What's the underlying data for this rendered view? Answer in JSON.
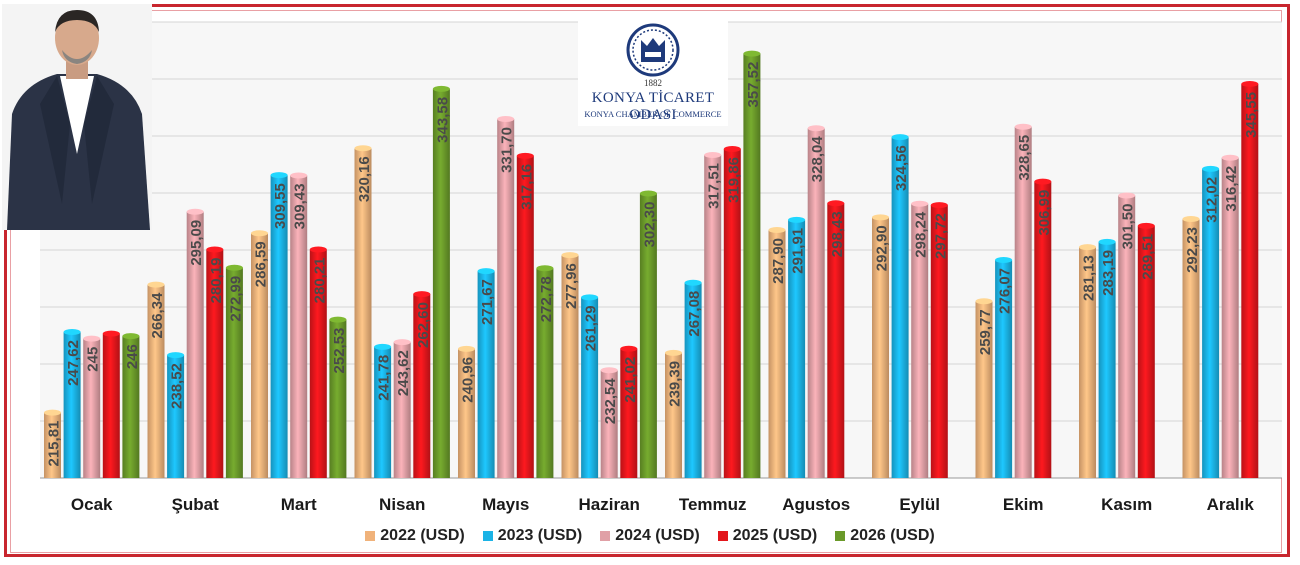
{
  "logo": {
    "year": "1882",
    "name": "KONYA TİCARET ODASI",
    "subtitle": "KONYA CHAMBER OF COMMERCE"
  },
  "colors": {
    "2022 (USD)": "#f0b27a",
    "2023 (USD)": "#1bb3e6",
    "2024 (USD)": "#e0a0a6",
    "2025 (USD)": "#e3161c",
    "2026 (USD)": "#6a9a2a",
    "frame": "#c8262e"
  },
  "chart_data": {
    "type": "bar",
    "title": "",
    "xlabel": "",
    "ylabel": "",
    "ylim": [
      190,
      370
    ],
    "grid": true,
    "legend_position": "bottom",
    "categories": [
      "Ocak",
      "Şubat",
      "Mart",
      "Nisan",
      "Mayıs",
      "Haziran",
      "Temmuz",
      "Agustos",
      "Eylül",
      "Ekim",
      "Kasım",
      "Aralık"
    ],
    "series": [
      {
        "name": "2022 (USD)",
        "values": [
          215.81,
          266.34,
          286.59,
          320.16,
          240.96,
          277.96,
          239.39,
          287.9,
          292.9,
          259.77,
          281.13,
          292.23
        ],
        "labels": [
          "215,81",
          "266,34",
          "286,59",
          "320,16",
          "240,96",
          "277,96",
          "239,39",
          "287,90",
          "292,90",
          "259,77",
          "281,13",
          "292,23"
        ]
      },
      {
        "name": "2023 (USD)",
        "values": [
          247.62,
          238.52,
          309.55,
          241.78,
          271.67,
          261.29,
          267.08,
          291.91,
          324.56,
          276.07,
          283.19,
          312.02
        ],
        "labels": [
          "247,62",
          "238,52",
          "309,55",
          "241,78",
          "271,67",
          "261,29",
          "267,08",
          "291,91",
          "324,56",
          "276,07",
          "283,19",
          "312,02"
        ]
      },
      {
        "name": "2024 (USD)",
        "values": [
          245,
          295.09,
          309.43,
          243.62,
          331.7,
          232.54,
          317.51,
          328.04,
          298.24,
          328.65,
          301.5,
          316.42
        ],
        "labels": [
          "245",
          "295,09",
          "309,43",
          "243,62",
          "331,70",
          "232,54",
          "317,51",
          "328,04",
          "298,24",
          "328,65",
          "301,50",
          "316,42"
        ]
      },
      {
        "name": "2025 (USD)",
        "values": [
          247,
          280.19,
          280.21,
          262.6,
          317.16,
          241.02,
          319.86,
          298.43,
          297.72,
          306.99,
          289.51,
          345.55
        ],
        "labels": [
          "",
          "280,19",
          "280,21",
          "262,60",
          "317,16",
          "241,02",
          "319,86",
          "298,43",
          "297,72",
          "306,99",
          "289,51",
          "345,55"
        ]
      },
      {
        "name": "2026 (USD)",
        "values": [
          246,
          272.99,
          252.53,
          343.58,
          272.78,
          302.3,
          357.52,
          null,
          null,
          null,
          null,
          null
        ],
        "labels": [
          "246",
          "272,99",
          "252,53",
          "343,58",
          "272,78",
          "302,30",
          "357,52",
          "",
          "",
          "",
          "",
          ""
        ]
      }
    ]
  }
}
